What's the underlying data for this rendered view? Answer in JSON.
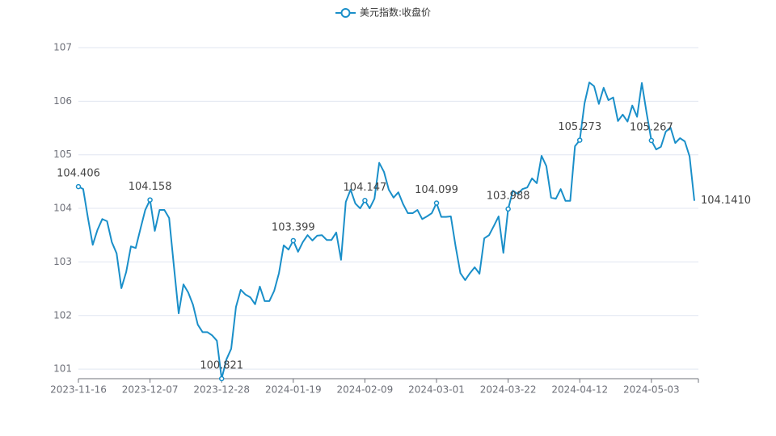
{
  "chart_data": {
    "type": "line",
    "categories": [
      "2023-11-16",
      null,
      null,
      null,
      null,
      null,
      null,
      null,
      null,
      null,
      null,
      null,
      null,
      null,
      null,
      "2023-12-07",
      null,
      null,
      null,
      null,
      null,
      null,
      null,
      null,
      null,
      null,
      null,
      null,
      null,
      null,
      "2023-12-28",
      null,
      null,
      null,
      null,
      null,
      null,
      null,
      null,
      null,
      null,
      null,
      null,
      null,
      null,
      "2024-01-19",
      null,
      null,
      null,
      null,
      null,
      null,
      null,
      null,
      null,
      null,
      null,
      null,
      null,
      null,
      "2024-02-09",
      null,
      null,
      null,
      null,
      null,
      null,
      null,
      null,
      null,
      null,
      null,
      null,
      null,
      null,
      "2024-03-01",
      null,
      null,
      null,
      null,
      null,
      null,
      null,
      null,
      null,
      null,
      null,
      null,
      null,
      null,
      "2024-03-22",
      null,
      null,
      null,
      null,
      null,
      null,
      null,
      null,
      null,
      null,
      null,
      null,
      null,
      null,
      "2024-04-12",
      null,
      null,
      null,
      null,
      null,
      null,
      null,
      null,
      null,
      null,
      null,
      null,
      null,
      null,
      "2024-05-03",
      null,
      null,
      null,
      null,
      null,
      null,
      null,
      null,
      null
    ],
    "series": [
      {
        "name": "美元指数:收盘价",
        "color": "#1a8fc9",
        "values": [
          104.406,
          104.36,
          103.82,
          103.32,
          103.6,
          103.8,
          103.76,
          103.37,
          103.16,
          102.51,
          102.81,
          103.29,
          103.26,
          103.62,
          103.97,
          104.158,
          103.58,
          103.97,
          103.97,
          103.82,
          102.92,
          102.04,
          102.58,
          102.43,
          102.2,
          101.83,
          101.69,
          101.69,
          101.63,
          101.53,
          100.821,
          101.18,
          101.38,
          102.16,
          102.48,
          102.39,
          102.34,
          102.21,
          102.54,
          102.27,
          102.27,
          102.46,
          102.79,
          103.31,
          103.23,
          103.399,
          103.19,
          103.37,
          103.5,
          103.4,
          103.49,
          103.5,
          103.41,
          103.41,
          103.55,
          103.04,
          104.12,
          104.35,
          104.09,
          104.0,
          104.147,
          104.0,
          104.18,
          104.85,
          104.68,
          104.35,
          104.2,
          104.3,
          104.08,
          103.91,
          103.91,
          103.97,
          103.8,
          103.85,
          103.91,
          104.099,
          103.84,
          103.84,
          103.85,
          103.29,
          102.79,
          102.66,
          102.79,
          102.9,
          102.78,
          103.44,
          103.5,
          103.67,
          103.85,
          103.17,
          103.988,
          104.33,
          104.27,
          104.36,
          104.39,
          104.56,
          104.47,
          104.98,
          104.79,
          104.2,
          104.18,
          104.36,
          104.14,
          104.14,
          105.16,
          105.273,
          105.96,
          106.35,
          106.28,
          105.95,
          106.25,
          106.02,
          106.07,
          105.63,
          105.75,
          105.62,
          105.92,
          105.71,
          106.34,
          105.78,
          105.267,
          105.1,
          105.15,
          105.43,
          105.51,
          105.22,
          105.31,
          105.25,
          104.97,
          104.141
        ],
        "value_labels": [
          "104.406",
          null,
          null,
          null,
          null,
          null,
          null,
          null,
          null,
          null,
          null,
          null,
          null,
          null,
          null,
          "104.158",
          null,
          null,
          null,
          null,
          null,
          null,
          null,
          null,
          null,
          null,
          null,
          null,
          null,
          null,
          "100.821",
          null,
          null,
          null,
          null,
          null,
          null,
          null,
          null,
          null,
          null,
          null,
          null,
          null,
          null,
          "103.399",
          null,
          null,
          null,
          null,
          null,
          null,
          null,
          null,
          null,
          null,
          null,
          null,
          null,
          null,
          "104.147",
          null,
          null,
          null,
          null,
          null,
          null,
          null,
          null,
          null,
          null,
          null,
          null,
          null,
          null,
          "104.099",
          null,
          null,
          null,
          null,
          null,
          null,
          null,
          null,
          null,
          null,
          null,
          null,
          null,
          null,
          "103.988",
          null,
          null,
          null,
          null,
          null,
          null,
          null,
          null,
          null,
          null,
          null,
          null,
          null,
          null,
          "105.273",
          null,
          null,
          null,
          null,
          null,
          null,
          null,
          null,
          null,
          null,
          null,
          null,
          null,
          null,
          "105.267",
          null,
          null,
          null,
          null,
          null,
          null,
          null,
          null,
          "104.1410"
        ]
      }
    ],
    "ylim": [
      100.821,
      107
    ],
    "yticks": [
      101,
      102,
      103,
      104,
      105,
      106,
      107
    ],
    "grid": true,
    "legend": "top"
  }
}
